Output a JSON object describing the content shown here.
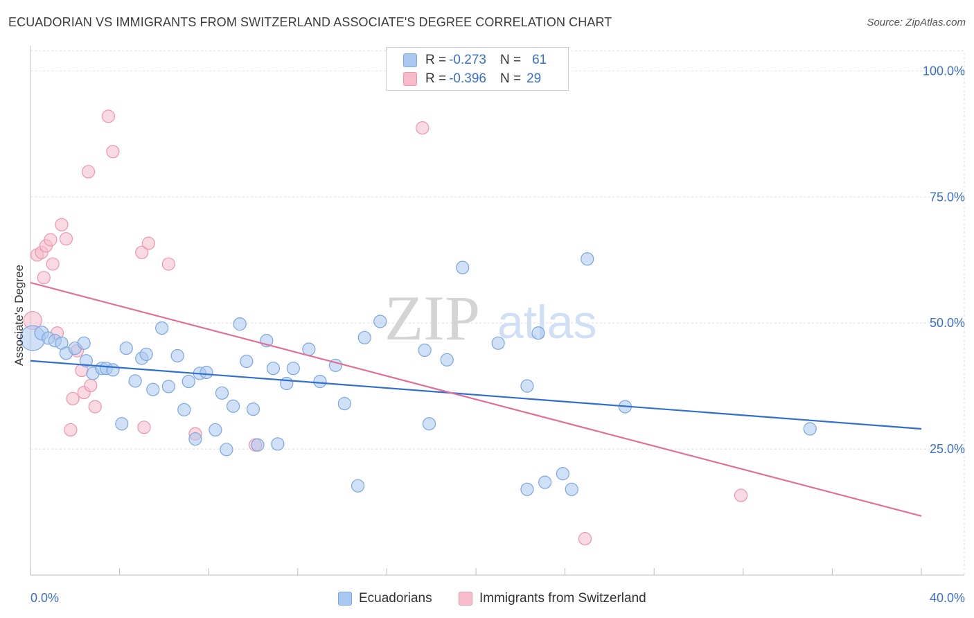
{
  "header": {
    "title": "ECUADORIAN VS IMMIGRANTS FROM SWITZERLAND ASSOCIATE'S DEGREE CORRELATION CHART",
    "source": "Source: ZipAtlas.com"
  },
  "watermark": {
    "zip": "ZIP",
    "atlas": "atlas"
  },
  "legend": {
    "rows": [
      {
        "r_label": "R =",
        "r_value": "-0.273",
        "n_label": "N =",
        "n_value": "61",
        "color": "#aac8f0"
      },
      {
        "r_label": "R =",
        "r_value": "-0.396",
        "n_label": "N =",
        "n_value": "29",
        "color": "#f6bccb"
      }
    ]
  },
  "bottom_legend": {
    "ecuadorians": "Ecuadorians",
    "swiss": "Immigrants from Switzerland"
  },
  "colors": {
    "blue_fill": "#aac8f0",
    "blue_stroke": "#7aa6e0",
    "blue_line": "#2f6fcf",
    "pink_fill": "#f6bccb",
    "pink_stroke": "#ee94ae",
    "pink_line": "#e07098",
    "axis_text": "#3b6fcf",
    "grid": "#dedede"
  },
  "chart_data": {
    "type": "scatter",
    "title": "ECUADORIAN VS IMMIGRANTS FROM SWITZERLAND ASSOCIATE'S DEGREE CORRELATION CHART",
    "xlabel": "",
    "ylabel": "Associate's Degree",
    "xlim": [
      0,
      40
    ],
    "ylim": [
      0,
      105
    ],
    "x_tick_labels": [
      "0.0%",
      "40.0%"
    ],
    "y_ticks": [
      25,
      50,
      75,
      100
    ],
    "y_tick_labels": [
      "25.0%",
      "50.0%",
      "75.0%",
      "100.0%"
    ],
    "grid": true,
    "legend_position": "top-center",
    "series": [
      {
        "name": "Ecuadorians",
        "r": -0.273,
        "n": 61,
        "trend": {
          "x": [
            0,
            40
          ],
          "y": [
            42.5,
            29.0
          ]
        },
        "points": [
          {
            "x": 0.1,
            "y": 47.0,
            "s": 18
          },
          {
            "x": 0.5,
            "y": 48.0,
            "s": 10
          },
          {
            "x": 0.8,
            "y": 47.0,
            "s": 9
          },
          {
            "x": 1.1,
            "y": 46.5,
            "s": 9
          },
          {
            "x": 1.4,
            "y": 46.0,
            "s": 9
          },
          {
            "x": 1.6,
            "y": 44.0,
            "s": 9
          },
          {
            "x": 2.0,
            "y": 45.0,
            "s": 9
          },
          {
            "x": 2.4,
            "y": 46.0,
            "s": 9
          },
          {
            "x": 2.5,
            "y": 42.5,
            "s": 9
          },
          {
            "x": 2.8,
            "y": 40.0,
            "s": 9
          },
          {
            "x": 3.2,
            "y": 41.0,
            "s": 9
          },
          {
            "x": 3.4,
            "y": 41.0,
            "s": 9
          },
          {
            "x": 3.7,
            "y": 40.7,
            "s": 9
          },
          {
            "x": 4.1,
            "y": 30.0,
            "s": 9
          },
          {
            "x": 4.3,
            "y": 45.0,
            "s": 9
          },
          {
            "x": 4.7,
            "y": 38.5,
            "s": 9
          },
          {
            "x": 5.0,
            "y": 43.0,
            "s": 9
          },
          {
            "x": 5.2,
            "y": 43.8,
            "s": 9
          },
          {
            "x": 5.5,
            "y": 36.8,
            "s": 9
          },
          {
            "x": 5.9,
            "y": 49.0,
            "s": 9
          },
          {
            "x": 6.2,
            "y": 37.4,
            "s": 9
          },
          {
            "x": 6.6,
            "y": 43.5,
            "s": 9
          },
          {
            "x": 6.9,
            "y": 32.8,
            "s": 9
          },
          {
            "x": 7.1,
            "y": 38.4,
            "s": 9
          },
          {
            "x": 7.4,
            "y": 27.0,
            "s": 9
          },
          {
            "x": 7.6,
            "y": 40.0,
            "s": 9
          },
          {
            "x": 7.9,
            "y": 40.2,
            "s": 9
          },
          {
            "x": 8.3,
            "y": 28.8,
            "s": 9
          },
          {
            "x": 8.6,
            "y": 36.1,
            "s": 9
          },
          {
            "x": 8.8,
            "y": 24.9,
            "s": 9
          },
          {
            "x": 9.1,
            "y": 33.5,
            "s": 9
          },
          {
            "x": 9.4,
            "y": 49.8,
            "s": 9
          },
          {
            "x": 9.7,
            "y": 42.4,
            "s": 9
          },
          {
            "x": 10.0,
            "y": 32.9,
            "s": 9
          },
          {
            "x": 10.2,
            "y": 25.8,
            "s": 9
          },
          {
            "x": 10.6,
            "y": 46.5,
            "s": 9
          },
          {
            "x": 10.9,
            "y": 41.0,
            "s": 9
          },
          {
            "x": 11.1,
            "y": 26.0,
            "s": 9
          },
          {
            "x": 11.5,
            "y": 38.0,
            "s": 9
          },
          {
            "x": 11.8,
            "y": 41.0,
            "s": 9
          },
          {
            "x": 12.5,
            "y": 44.8,
            "s": 9
          },
          {
            "x": 13.0,
            "y": 38.4,
            "s": 9
          },
          {
            "x": 13.7,
            "y": 41.6,
            "s": 9
          },
          {
            "x": 14.1,
            "y": 34.0,
            "s": 9
          },
          {
            "x": 14.7,
            "y": 17.7,
            "s": 9
          },
          {
            "x": 15.0,
            "y": 47.1,
            "s": 9
          },
          {
            "x": 15.7,
            "y": 50.3,
            "s": 9
          },
          {
            "x": 17.7,
            "y": 44.6,
            "s": 9
          },
          {
            "x": 17.9,
            "y": 30.0,
            "s": 9
          },
          {
            "x": 18.7,
            "y": 42.7,
            "s": 9
          },
          {
            "x": 19.4,
            "y": 61.0,
            "s": 9
          },
          {
            "x": 21.0,
            "y": 46.0,
            "s": 9
          },
          {
            "x": 22.3,
            "y": 17.0,
            "s": 9
          },
          {
            "x": 22.3,
            "y": 37.5,
            "s": 9
          },
          {
            "x": 22.8,
            "y": 48.0,
            "s": 9
          },
          {
            "x": 23.1,
            "y": 18.4,
            "s": 9
          },
          {
            "x": 23.9,
            "y": 20.1,
            "s": 9
          },
          {
            "x": 24.3,
            "y": 17.0,
            "s": 9
          },
          {
            "x": 25.0,
            "y": 62.7,
            "s": 9
          },
          {
            "x": 26.7,
            "y": 33.4,
            "s": 9
          },
          {
            "x": 35.0,
            "y": 29.0,
            "s": 9
          }
        ]
      },
      {
        "name": "Immigrants from Switzerland",
        "r": -0.396,
        "n": 29,
        "trend": {
          "x": [
            0,
            40
          ],
          "y": [
            58.0,
            11.7
          ]
        },
        "points": [
          {
            "x": 0.1,
            "y": 50.5,
            "s": 13
          },
          {
            "x": 0.3,
            "y": 63.5,
            "s": 9
          },
          {
            "x": 0.5,
            "y": 64.0,
            "s": 9
          },
          {
            "x": 0.6,
            "y": 59.0,
            "s": 9
          },
          {
            "x": 0.7,
            "y": 65.3,
            "s": 9
          },
          {
            "x": 0.9,
            "y": 66.5,
            "s": 9
          },
          {
            "x": 1.0,
            "y": 61.7,
            "s": 9
          },
          {
            "x": 1.2,
            "y": 48.0,
            "s": 9
          },
          {
            "x": 1.4,
            "y": 69.5,
            "s": 9
          },
          {
            "x": 1.6,
            "y": 66.7,
            "s": 9
          },
          {
            "x": 1.8,
            "y": 28.8,
            "s": 9
          },
          {
            "x": 1.9,
            "y": 35.0,
            "s": 9
          },
          {
            "x": 2.1,
            "y": 44.5,
            "s": 9
          },
          {
            "x": 2.3,
            "y": 40.6,
            "s": 9
          },
          {
            "x": 2.4,
            "y": 36.2,
            "s": 9
          },
          {
            "x": 2.6,
            "y": 80.0,
            "s": 9
          },
          {
            "x": 2.7,
            "y": 37.6,
            "s": 9
          },
          {
            "x": 2.9,
            "y": 33.4,
            "s": 9
          },
          {
            "x": 3.5,
            "y": 91.0,
            "s": 9
          },
          {
            "x": 3.7,
            "y": 84.0,
            "s": 9
          },
          {
            "x": 5.0,
            "y": 64.0,
            "s": 9
          },
          {
            "x": 5.1,
            "y": 29.3,
            "s": 9
          },
          {
            "x": 5.3,
            "y": 65.8,
            "s": 9
          },
          {
            "x": 6.2,
            "y": 61.7,
            "s": 9
          },
          {
            "x": 7.4,
            "y": 28.0,
            "s": 9
          },
          {
            "x": 10.1,
            "y": 25.8,
            "s": 9
          },
          {
            "x": 17.6,
            "y": 88.7,
            "s": 9
          },
          {
            "x": 24.9,
            "y": 7.2,
            "s": 9
          },
          {
            "x": 31.9,
            "y": 15.8,
            "s": 9
          }
        ]
      }
    ]
  }
}
